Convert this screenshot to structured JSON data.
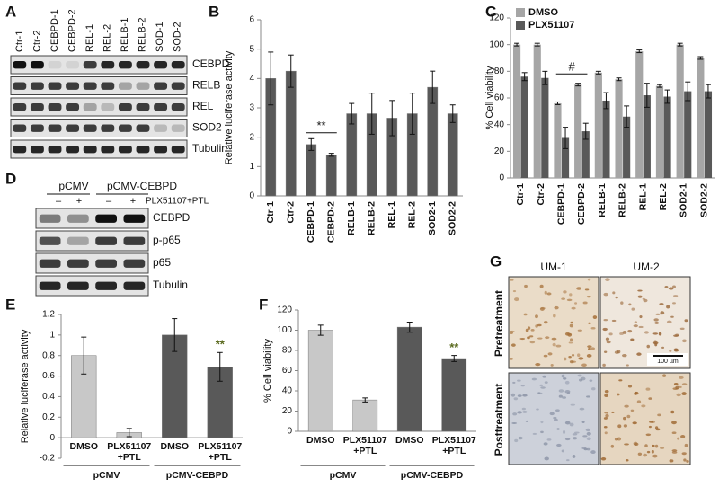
{
  "panel_a": {
    "label": "A",
    "lanes": [
      "Ctr-1",
      "Ctr-2",
      "CEBPD-1",
      "CEBPD-2",
      "REL-1",
      "REL-2",
      "RELB-1",
      "RELB-2",
      "SOD-1",
      "SOD-2"
    ],
    "rows": [
      "CEBPD",
      "RELB",
      "REL",
      "SOD2",
      "Tubulin"
    ]
  },
  "panel_d": {
    "label": "D",
    "groups": [
      "pCMV",
      "pCMV-CEBPD"
    ],
    "treatment": "PLX51107+PTL",
    "signs": [
      "–",
      "+",
      "–",
      "+"
    ],
    "rows": [
      "CEBPD",
      "p-p65",
      "p65",
      "Tubulin"
    ]
  },
  "panel_g": {
    "label": "G",
    "columns": [
      "UM-1",
      "UM-2"
    ],
    "rows": [
      "Pretreatment",
      "Posttreatment"
    ],
    "scale_bar": "100 µm"
  },
  "chart_data": [
    {
      "type": "bar",
      "label": "B",
      "ylabel": "Relative luciferase activity",
      "categories": [
        "Ctr-1",
        "Ctr-2",
        "CEBPD-1",
        "CEBPD-2",
        "RELB-1",
        "RELB-2",
        "REL-1",
        "REL-2",
        "SOD2-1",
        "SOD2-2"
      ],
      "values": [
        4.0,
        4.25,
        1.75,
        1.4,
        2.8,
        2.8,
        2.65,
        2.8,
        3.7,
        2.8
      ],
      "errors": [
        0.9,
        0.55,
        0.2,
        0.05,
        0.35,
        0.7,
        0.6,
        0.7,
        0.55,
        0.3
      ],
      "color": "#595959",
      "ylim": [
        0,
        6
      ],
      "yticks": [
        0,
        1,
        2,
        3,
        4,
        5,
        6
      ],
      "annotation": "**"
    },
    {
      "type": "bar",
      "label": "C",
      "ylabel": "% Cell viability",
      "categories": [
        "Ctr-1",
        "Ctr-2",
        "CEBPD-1",
        "CEBPD-2",
        "RELB-1",
        "RELB-2",
        "REL-1",
        "REL-2",
        "SOD2-1",
        "SOD2-2"
      ],
      "series": [
        {
          "name": "DMSO",
          "color": "#a6a6a6",
          "values": [
            100,
            100,
            56,
            70,
            79,
            74,
            95,
            69,
            100,
            90
          ],
          "errors": [
            1,
            1,
            1,
            1,
            1,
            1,
            1,
            1,
            1,
            1
          ]
        },
        {
          "name": "PLX51107",
          "color": "#595959",
          "values": [
            76,
            75,
            30,
            35,
            58,
            46,
            62,
            61,
            65,
            65
          ],
          "errors": [
            3,
            5,
            8,
            6,
            6,
            8,
            9,
            5,
            7,
            5
          ]
        }
      ],
      "legend": "top-left",
      "ylim": [
        0,
        120
      ],
      "yticks": [
        0,
        20,
        40,
        60,
        80,
        100,
        120
      ],
      "annotation": "#"
    },
    {
      "type": "bar",
      "label": "E",
      "ylabel": "Relative luciferase activity",
      "categories": [
        "DMSO",
        "PLX51107 +PTL",
        "DMSO",
        "PLX51107 +PTL"
      ],
      "groups": [
        "pCMV",
        "pCMV-CEBPD"
      ],
      "values": [
        0.8,
        0.05,
        1.0,
        0.69
      ],
      "errors": [
        0.18,
        0.04,
        0.16,
        0.14
      ],
      "colors": [
        "#c8c8c8",
        "#c8c8c8",
        "#595959",
        "#595959"
      ],
      "ylim": [
        -0.2,
        1.2
      ],
      "yticks": [
        -0.2,
        0,
        0.2,
        0.4,
        0.6,
        0.8,
        1,
        1.2
      ],
      "annotation": "**"
    },
    {
      "type": "bar",
      "label": "F",
      "ylabel": "% Cell viability",
      "categories": [
        "DMSO",
        "PLX51107 +PTL",
        "DMSO",
        "PLX51107 +PTL"
      ],
      "groups": [
        "pCMV",
        "pCMV-CEBPD"
      ],
      "values": [
        100,
        31,
        103,
        72
      ],
      "errors": [
        5,
        2,
        5,
        3
      ],
      "colors": [
        "#c8c8c8",
        "#c8c8c8",
        "#595959",
        "#595959"
      ],
      "ylim": [
        0,
        120
      ],
      "yticks": [
        0,
        20,
        40,
        60,
        80,
        100,
        120
      ],
      "annotation": "**"
    }
  ]
}
